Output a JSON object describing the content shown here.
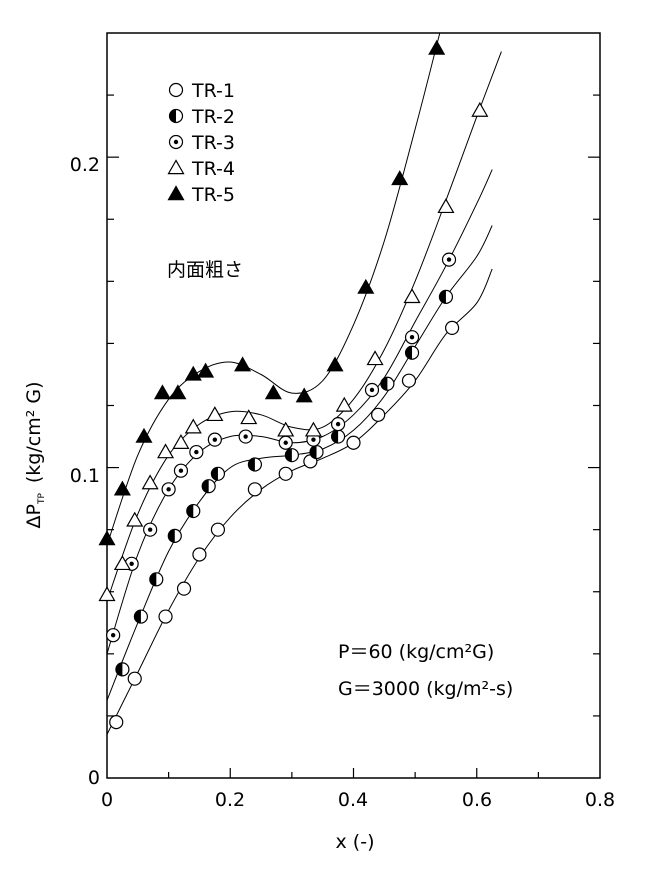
{
  "chart_data": {
    "type": "scatter",
    "xlim": [
      0,
      0.8
    ],
    "ylim": [
      0,
      0.24
    ],
    "x_ticks": [
      "0",
      "0.2",
      "0.4",
      "0.6",
      "0.8"
    ],
    "y_ticks": [
      "0",
      "0.1",
      "0.2"
    ],
    "xlabel": "x (-)",
    "ylabel_main": "ΔP",
    "ylabel_sub": "TP",
    "ylabel_unit": "(kg/cm² G)",
    "grid": false,
    "legend_position": "top-left",
    "annotations": {
      "surface": "内面粗さ",
      "pressure": "P＝60 (kg/cm²G)",
      "mass_flux": "G＝3000 (kg/m²-s)"
    },
    "series": [
      {
        "name": "TR-1",
        "marker": "open-circle",
        "points": [
          [
            0.015,
            0.018
          ],
          [
            0.045,
            0.032
          ],
          [
            0.095,
            0.052
          ],
          [
            0.125,
            0.061
          ],
          [
            0.15,
            0.072
          ],
          [
            0.18,
            0.08
          ],
          [
            0.24,
            0.093
          ],
          [
            0.29,
            0.098
          ],
          [
            0.33,
            0.102
          ],
          [
            0.4,
            0.108
          ],
          [
            0.44,
            0.117
          ],
          [
            0.49,
            0.128
          ],
          [
            0.56,
            0.145
          ]
        ],
        "curve": [
          [
            0.0,
            0.014
          ],
          [
            0.05,
            0.034
          ],
          [
            0.1,
            0.054
          ],
          [
            0.15,
            0.071
          ],
          [
            0.2,
            0.084
          ],
          [
            0.25,
            0.093
          ],
          [
            0.3,
            0.099
          ],
          [
            0.35,
            0.103
          ],
          [
            0.4,
            0.108
          ],
          [
            0.45,
            0.117
          ],
          [
            0.5,
            0.128
          ],
          [
            0.55,
            0.143
          ],
          [
            0.6,
            0.153
          ],
          [
            0.625,
            0.164
          ]
        ]
      },
      {
        "name": "TR-2",
        "marker": "half-filled-circle",
        "points": [
          [
            0.025,
            0.035
          ],
          [
            0.055,
            0.052
          ],
          [
            0.08,
            0.064
          ],
          [
            0.11,
            0.078
          ],
          [
            0.14,
            0.086
          ],
          [
            0.165,
            0.094
          ],
          [
            0.18,
            0.098
          ],
          [
            0.24,
            0.101
          ],
          [
            0.3,
            0.104
          ],
          [
            0.34,
            0.105
          ],
          [
            0.375,
            0.11
          ],
          [
            0.455,
            0.127
          ],
          [
            0.495,
            0.137
          ],
          [
            0.55,
            0.155
          ]
        ],
        "curve": [
          [
            0.0,
            0.025
          ],
          [
            0.05,
            0.05
          ],
          [
            0.1,
            0.073
          ],
          [
            0.15,
            0.089
          ],
          [
            0.2,
            0.1
          ],
          [
            0.25,
            0.103
          ],
          [
            0.3,
            0.104
          ],
          [
            0.35,
            0.106
          ],
          [
            0.4,
            0.112
          ],
          [
            0.45,
            0.123
          ],
          [
            0.5,
            0.139
          ],
          [
            0.55,
            0.155
          ],
          [
            0.6,
            0.168
          ],
          [
            0.625,
            0.178
          ]
        ]
      },
      {
        "name": "TR-3",
        "marker": "dotted-circle",
        "points": [
          [
            0.01,
            0.046
          ],
          [
            0.04,
            0.069
          ],
          [
            0.07,
            0.08
          ],
          [
            0.1,
            0.093
          ],
          [
            0.12,
            0.099
          ],
          [
            0.145,
            0.105
          ],
          [
            0.175,
            0.109
          ],
          [
            0.225,
            0.11
          ],
          [
            0.29,
            0.108
          ],
          [
            0.335,
            0.109
          ],
          [
            0.375,
            0.114
          ],
          [
            0.43,
            0.125
          ],
          [
            0.495,
            0.142
          ],
          [
            0.555,
            0.167
          ]
        ],
        "curve": [
          [
            0.0,
            0.04
          ],
          [
            0.05,
            0.072
          ],
          [
            0.1,
            0.093
          ],
          [
            0.15,
            0.105
          ],
          [
            0.2,
            0.11
          ],
          [
            0.25,
            0.11
          ],
          [
            0.3,
            0.108
          ],
          [
            0.35,
            0.11
          ],
          [
            0.4,
            0.117
          ],
          [
            0.45,
            0.129
          ],
          [
            0.5,
            0.147
          ],
          [
            0.55,
            0.165
          ],
          [
            0.6,
            0.185
          ],
          [
            0.625,
            0.196
          ]
        ]
      },
      {
        "name": "TR-4",
        "marker": "open-triangle",
        "points": [
          [
            0.0,
            0.059
          ],
          [
            0.025,
            0.069
          ],
          [
            0.045,
            0.083
          ],
          [
            0.07,
            0.095
          ],
          [
            0.095,
            0.105
          ],
          [
            0.12,
            0.108
          ],
          [
            0.14,
            0.113
          ],
          [
            0.175,
            0.117
          ],
          [
            0.23,
            0.116
          ],
          [
            0.29,
            0.112
          ],
          [
            0.335,
            0.112
          ],
          [
            0.385,
            0.12
          ],
          [
            0.435,
            0.135
          ],
          [
            0.495,
            0.155
          ],
          [
            0.55,
            0.184
          ],
          [
            0.605,
            0.215
          ]
        ],
        "curve": [
          [
            0.0,
            0.057
          ],
          [
            0.05,
            0.085
          ],
          [
            0.1,
            0.104
          ],
          [
            0.15,
            0.114
          ],
          [
            0.2,
            0.118
          ],
          [
            0.25,
            0.117
          ],
          [
            0.3,
            0.113
          ],
          [
            0.35,
            0.113
          ],
          [
            0.4,
            0.122
          ],
          [
            0.45,
            0.138
          ],
          [
            0.5,
            0.16
          ],
          [
            0.55,
            0.186
          ],
          [
            0.6,
            0.213
          ],
          [
            0.64,
            0.234
          ]
        ]
      },
      {
        "name": "TR-5",
        "marker": "filled-triangle",
        "points": [
          [
            0.0,
            0.077
          ],
          [
            0.025,
            0.093
          ],
          [
            0.06,
            0.11
          ],
          [
            0.09,
            0.124
          ],
          [
            0.115,
            0.124
          ],
          [
            0.14,
            0.13
          ],
          [
            0.16,
            0.131
          ],
          [
            0.22,
            0.133
          ],
          [
            0.27,
            0.124
          ],
          [
            0.32,
            0.123
          ],
          [
            0.37,
            0.133
          ],
          [
            0.42,
            0.158
          ],
          [
            0.475,
            0.193
          ],
          [
            0.535,
            0.235
          ]
        ],
        "curve": [
          [
            0.0,
            0.075
          ],
          [
            0.05,
            0.104
          ],
          [
            0.1,
            0.122
          ],
          [
            0.15,
            0.131
          ],
          [
            0.2,
            0.134
          ],
          [
            0.25,
            0.13
          ],
          [
            0.3,
            0.124
          ],
          [
            0.35,
            0.128
          ],
          [
            0.4,
            0.146
          ],
          [
            0.45,
            0.173
          ],
          [
            0.5,
            0.209
          ],
          [
            0.54,
            0.24
          ]
        ]
      }
    ]
  }
}
